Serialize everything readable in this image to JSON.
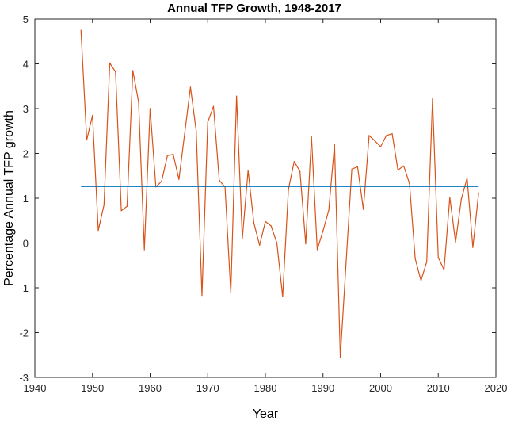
{
  "chart_data": {
    "type": "line",
    "title": "Annual TFP Growth, 1948-2017",
    "xlabel": "Year",
    "ylabel": "Percentage Annual TFP growth",
    "xlim": [
      1940,
      2020
    ],
    "ylim": [
      -3,
      5
    ],
    "xticks": [
      1940,
      1950,
      1960,
      1970,
      1980,
      1990,
      2000,
      2010,
      2020
    ],
    "yticks": [
      -3,
      -2,
      -1,
      0,
      1,
      2,
      3,
      4,
      5
    ],
    "grid": false,
    "series": [
      {
        "color": "#d95319",
        "x": [
          1948,
          1949,
          1950,
          1951,
          1952,
          1953,
          1954,
          1955,
          1956,
          1957,
          1958,
          1959,
          1960,
          1961,
          1962,
          1963,
          1964,
          1965,
          1966,
          1967,
          1968,
          1969,
          1970,
          1971,
          1972,
          1973,
          1974,
          1975,
          1976,
          1977,
          1978,
          1979,
          1980,
          1981,
          1982,
          1983,
          1984,
          1985,
          1986,
          1987,
          1988,
          1989,
          1990,
          1991,
          1992,
          1993,
          1994,
          1995,
          1996,
          1997,
          1998,
          1999,
          2000,
          2001,
          2002,
          2003,
          2004,
          2005,
          2006,
          2007,
          2008,
          2009,
          2010,
          2011,
          2012,
          2013,
          2014,
          2015,
          2016,
          2017
        ],
        "y": [
          4.75,
          2.3,
          2.85,
          0.28,
          0.85,
          4.02,
          3.82,
          0.72,
          0.82,
          3.85,
          3.15,
          -0.15,
          3.0,
          1.25,
          1.38,
          1.95,
          1.98,
          1.42,
          2.45,
          3.48,
          2.5,
          -1.17,
          2.7,
          3.05,
          1.4,
          1.25,
          -1.12,
          3.28,
          0.1,
          1.62,
          0.45,
          -0.05,
          0.48,
          0.38,
          0.0,
          -1.2,
          1.2,
          1.82,
          1.6,
          -0.02,
          2.37,
          -0.15,
          0.27,
          0.73,
          2.2,
          -2.55,
          -0.45,
          1.65,
          1.7,
          0.75,
          2.4,
          2.28,
          2.15,
          2.4,
          2.44,
          1.63,
          1.72,
          1.33,
          -0.35,
          -0.84,
          -0.42,
          3.22,
          -0.32,
          -0.6,
          1.02,
          0.02,
          0.98,
          1.45,
          -0.1,
          1.12
        ]
      },
      {
        "color": "#0072bd",
        "x": [
          1948,
          2017
        ],
        "y": [
          1.26,
          1.26
        ]
      }
    ]
  }
}
